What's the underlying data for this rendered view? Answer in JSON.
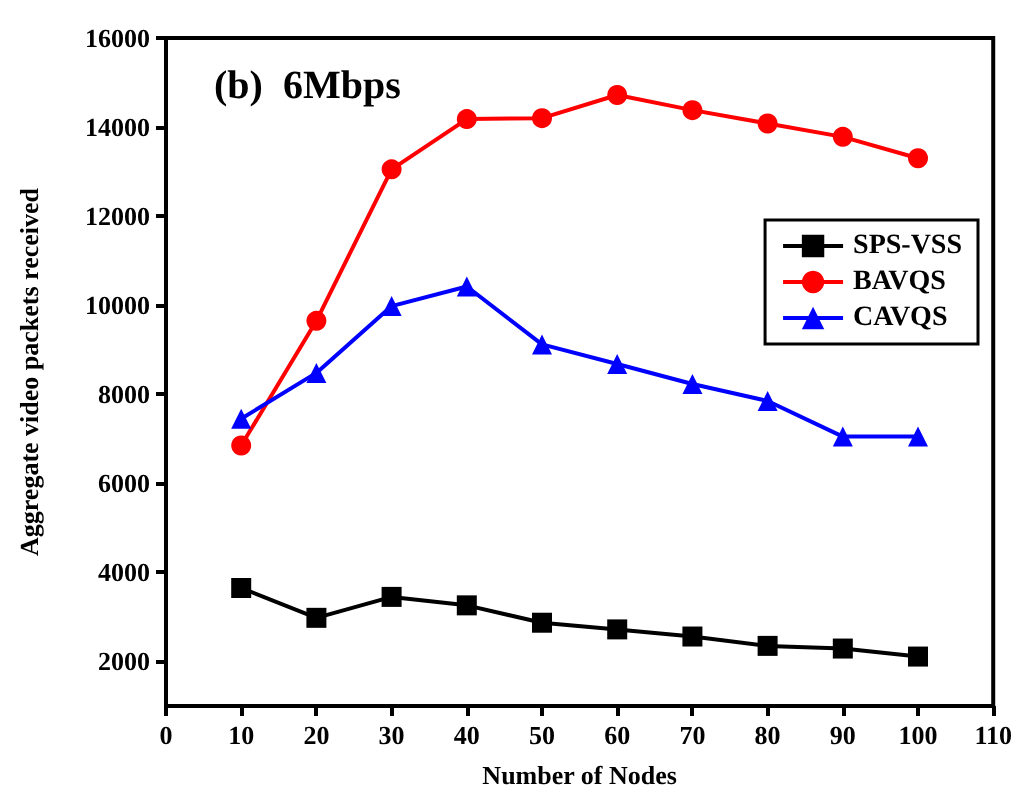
{
  "chart_data": {
    "type": "line",
    "xlabel": "Number of Nodes",
    "ylabel": "Aggregate video packets received",
    "annotations": [
      "(b)  6Mbps"
    ],
    "x": [
      10,
      20,
      30,
      40,
      50,
      60,
      70,
      80,
      90,
      100
    ],
    "series": [
      {
        "name": "SPS-VSS",
        "color": "#000000",
        "marker": "square",
        "values": [
          3650,
          2980,
          3450,
          3260,
          2870,
          2720,
          2560,
          2350,
          2290,
          2110
        ]
      },
      {
        "name": "BAVQS",
        "color": "#ff0000",
        "marker": "circle",
        "values": [
          6850,
          9650,
          13050,
          14180,
          14200,
          14720,
          14380,
          14080,
          13780,
          13300
        ]
      },
      {
        "name": "CAVQS",
        "color": "#0000ff",
        "marker": "triangle",
        "values": [
          7450,
          8480,
          9980,
          10420,
          9120,
          8680,
          8230,
          7850,
          7050,
          7050
        ]
      }
    ],
    "xlim": [
      0,
      110
    ],
    "xticks": [
      0,
      10,
      20,
      30,
      40,
      50,
      60,
      70,
      80,
      90,
      100,
      110
    ],
    "ylim": [
      1000,
      16000
    ],
    "yticks": [
      2000,
      4000,
      6000,
      8000,
      10000,
      12000,
      14000,
      16000
    ],
    "grid": false,
    "legend": "right"
  }
}
